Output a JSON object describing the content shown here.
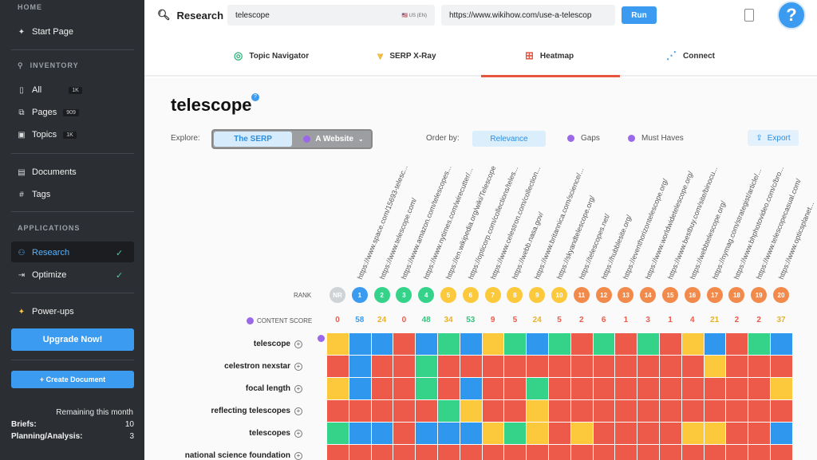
{
  "sidebar": {
    "home_section": "HOME",
    "start_page": "Start Page",
    "inventory_section": "INVENTORY",
    "all": "All",
    "all_badge": "1K",
    "pages": "Pages",
    "pages_badge": "909",
    "topics": "Topics",
    "topics_badge": "1K",
    "documents": "Documents",
    "tags": "Tags",
    "applications_section": "APPLICATIONS",
    "research": "Research",
    "optimize": "Optimize",
    "powerups": "Power-ups",
    "upgrade": "Upgrade Now!",
    "create_document": "+ Create Document",
    "remaining": "Remaining this month",
    "briefs_label": "Briefs:",
    "briefs_value": "10",
    "planning_label": "Planning/Analysis:",
    "planning_value": "3"
  },
  "topbar": {
    "title": "Research",
    "query": "telescope",
    "locale": "US (EN)",
    "url": "https://www.wikihow.com/use-a-telescop",
    "run": "Run",
    "help": "?"
  },
  "tabs": {
    "topic_navigator": "Topic Navigator",
    "serp_xray": "SERP X-Ray",
    "heatmap": "Heatmap",
    "connect": "Connect"
  },
  "main": {
    "keyword": "telescope",
    "explore_label": "Explore:",
    "explore_serp": "The SERP",
    "explore_website": "A Website",
    "order_label": "Order by:",
    "order_relevance": "Relevance",
    "order_gaps": "Gaps",
    "order_must_haves": "Must Haves",
    "export": "Export",
    "rank_label": "RANK",
    "content_score_label": "CONTENT SCORE"
  },
  "urls": [
    "https://www.space.com/15693-telesc...",
    "https://www.telescope.com/",
    "https://www.amazon.com/telescopes...",
    "https://www.nytimes.com/wirecutter/...",
    "https://en.wikipedia.org/wiki/Telescope",
    "https://opticorp.com/collections/teles...",
    "https://www.celestron.com/collection...",
    "https://webb.nasa.gov/",
    "https://www.britannica.com/science/...",
    "https://skyandtelescope.org/",
    "https://telescopes.net/",
    "https://hubblesite.org/",
    "https://eventhorizontelescope.org/",
    "https://www.worldwidetelescope.org/",
    "https://www.bestbuy.com/site/binocu...",
    "https://webbtelescope.org/",
    "https://nymag.com/strategist/article/...",
    "https://www.bhphotovideo.com/c/bro...",
    "https://www.telescopecasual.com/",
    "https://www.opticsplanet..."
  ],
  "ranks": [
    "NR",
    "1",
    "2",
    "3",
    "4",
    "5",
    "6",
    "7",
    "8",
    "9",
    "10",
    "11",
    "12",
    "13",
    "14",
    "15",
    "16",
    "17",
    "18",
    "19",
    "20"
  ],
  "content_scores": [
    "0",
    "58",
    "24",
    "0",
    "48",
    "34",
    "53",
    "9",
    "5",
    "24",
    "5",
    "2",
    "6",
    "1",
    "3",
    "1",
    "4",
    "21",
    "2",
    "2",
    "37"
  ],
  "rows": [
    {
      "label": "telescope",
      "cells": [
        "Y",
        "B",
        "B",
        "R",
        "B",
        "G",
        "B",
        "Y",
        "G",
        "B",
        "G",
        "R",
        "G",
        "R",
        "G",
        "R",
        "Y",
        "B",
        "R",
        "G",
        "B"
      ]
    },
    {
      "label": "celestron nexstar",
      "cells": [
        "R",
        "B",
        "R",
        "R",
        "G",
        "R",
        "R",
        "R",
        "R",
        "R",
        "R",
        "R",
        "R",
        "R",
        "R",
        "R",
        "R",
        "Y",
        "R",
        "R",
        "R"
      ]
    },
    {
      "label": "focal length",
      "cells": [
        "Y",
        "B",
        "R",
        "R",
        "G",
        "R",
        "B",
        "R",
        "R",
        "G",
        "R",
        "R",
        "R",
        "R",
        "R",
        "R",
        "R",
        "R",
        "R",
        "R",
        "Y"
      ]
    },
    {
      "label": "reflecting telescopes",
      "cells": [
        "R",
        "R",
        "R",
        "R",
        "R",
        "G",
        "Y",
        "R",
        "R",
        "Y",
        "R",
        "R",
        "R",
        "R",
        "R",
        "R",
        "R",
        "R",
        "R",
        "R",
        "R"
      ]
    },
    {
      "label": "telescopes",
      "cells": [
        "G",
        "B",
        "B",
        "R",
        "B",
        "B",
        "B",
        "Y",
        "G",
        "Y",
        "R",
        "Y",
        "R",
        "R",
        "R",
        "R",
        "Y",
        "Y",
        "R",
        "R",
        "B"
      ]
    },
    {
      "label": "national science foundation",
      "cells": [
        "R",
        "R",
        "R",
        "R",
        "R",
        "R",
        "R",
        "R",
        "R",
        "R",
        "R",
        "R",
        "R",
        "R",
        "R",
        "R",
        "R",
        "R",
        "R",
        "R",
        "R"
      ]
    }
  ],
  "colors": {
    "accent": "#3b9bf0",
    "heat_blue": "#2f97ee",
    "heat_green": "#35d38a",
    "heat_red": "#ee5a4a",
    "heat_yellow": "#fbc93b",
    "rank_gray": "#cfd3d6",
    "rank_blue": "#3b9bf0",
    "rank_green": "#35d38a",
    "rank_yellow": "#fbc93b",
    "rank_orange": "#f28a4b",
    "purple": "#9a68e8"
  }
}
